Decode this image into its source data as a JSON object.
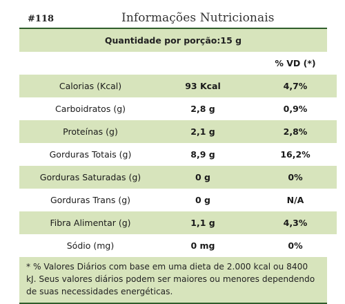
{
  "label": {
    "code": "#118",
    "title": "Informações Nutricionais",
    "portion": "Quantidade por porção:15 g",
    "vd_header": "% VD (*)",
    "rows": [
      {
        "name": "Calorias (Kcal)",
        "qty": "93 Kcal",
        "vd": "4,7%"
      },
      {
        "name": "Carboidratos (g)",
        "qty": "2,8 g",
        "vd": "0,9%"
      },
      {
        "name": "Proteínas (g)",
        "qty": "2,1 g",
        "vd": "2,8%"
      },
      {
        "name": "Gorduras Totais (g)",
        "qty": "8,9 g",
        "vd": "16,2%"
      },
      {
        "name": "Gorduras Saturadas (g)",
        "qty": "0 g",
        "vd": "0%"
      },
      {
        "name": "Gorduras Trans (g)",
        "qty": "0 g",
        "vd": "N/A"
      },
      {
        "name": "Fibra Alimentar (g)",
        "qty": "1,1 g",
        "vd": "4,3%"
      },
      {
        "name": "Sódio (mg)",
        "qty": "0 mg",
        "vd": "0%"
      }
    ],
    "footnote": "* % Valores Diários com base em uma dieta de 2.000 kcal ou 8400 kJ. Seus valores diários podem ser maiores ou menores dependendo de suas necessidades energéticas.",
    "colors": {
      "stripe": "#d7e4bc",
      "rule": "#2f5d2b"
    }
  }
}
